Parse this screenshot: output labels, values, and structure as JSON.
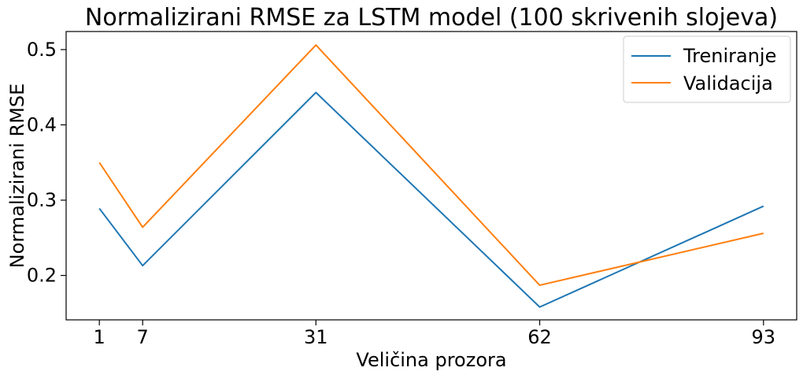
{
  "chart_data": {
    "type": "line",
    "title": "Normalizirani RMSE za LSTM model (100 skrivenih slojeva)",
    "xlabel": "Veličina prozora",
    "ylabel": "Normalizirani RMSE",
    "x": [
      1,
      7,
      31,
      62,
      93
    ],
    "xticks": [
      1,
      7,
      31,
      62,
      93
    ],
    "xtick_labels": [
      "1",
      "7",
      "31",
      "62",
      "93"
    ],
    "yticks": [
      0.2,
      0.3,
      0.4,
      0.5
    ],
    "ytick_labels": [
      "0.2",
      "0.3",
      "0.4",
      "0.5"
    ],
    "xlim": [
      -3.6,
      97.6
    ],
    "ylim": [
      0.141,
      0.524
    ],
    "grid": false,
    "legend_position": "top-right",
    "series": [
      {
        "name": "Treniranje",
        "color": "#1f77b4",
        "values": [
          0.289,
          0.213,
          0.443,
          0.158,
          0.292
        ]
      },
      {
        "name": "Validacija",
        "color": "#ff7f0e",
        "values": [
          0.35,
          0.264,
          0.506,
          0.187,
          0.256
        ]
      }
    ]
  }
}
